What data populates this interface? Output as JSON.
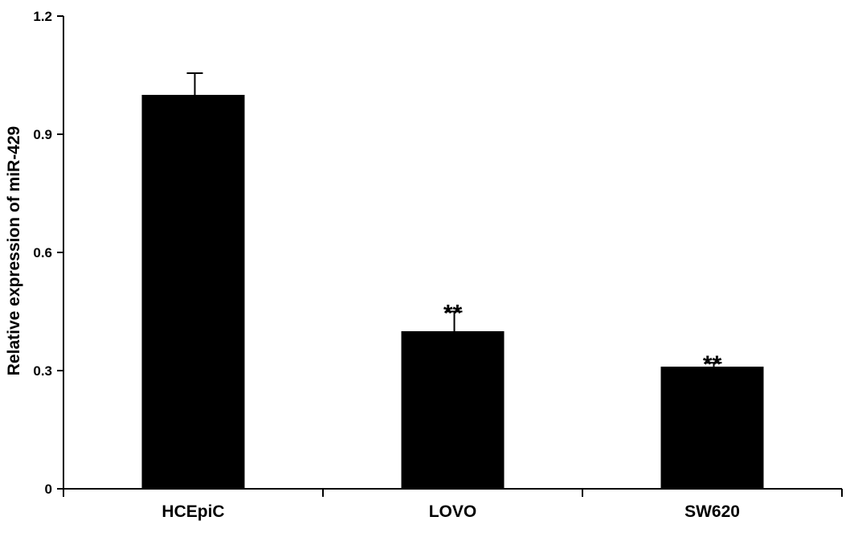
{
  "chart_data": {
    "type": "bar",
    "title": "",
    "xlabel": "",
    "ylabel": "Relative expression of miR-429",
    "categories": [
      "HCEpiC",
      "LOVO",
      "SW620"
    ],
    "values": [
      1.0,
      0.4,
      0.31
    ],
    "error": [
      0.055,
      0.05,
      0.01
    ],
    "annotations": [
      "",
      "**",
      "**"
    ],
    "ylim": [
      0,
      1.2
    ],
    "yticks": [
      0,
      0.3,
      0.6,
      0.9,
      1.2
    ],
    "ytick_labels": [
      "0",
      "0.3",
      "0.6",
      "0.9",
      "1.2"
    ],
    "grid": false,
    "bar_color": "#000000"
  }
}
